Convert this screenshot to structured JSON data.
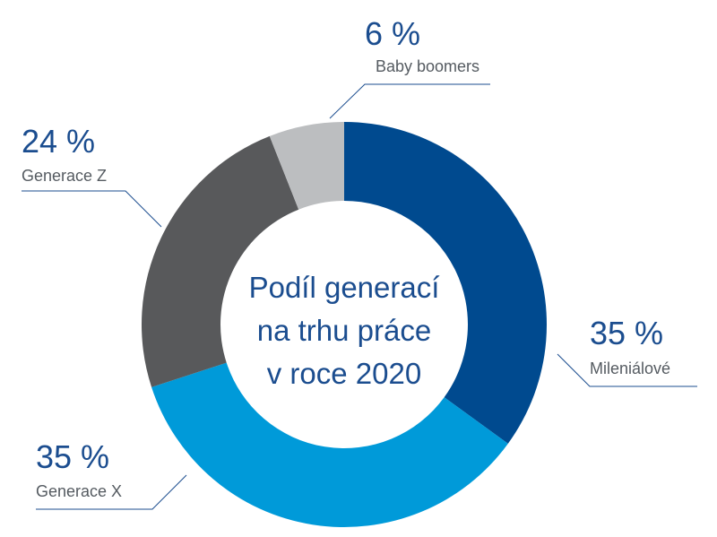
{
  "chart_data": {
    "type": "pie",
    "title_lines": [
      "Podíl generací",
      "na trhu práce",
      "v roce 2020"
    ],
    "slices": [
      {
        "name": "Mileniálové",
        "value": 35,
        "display": "35 %",
        "color": "#004a8f"
      },
      {
        "name": "Generace X",
        "value": 35,
        "display": "35 %",
        "color": "#009ad9"
      },
      {
        "name": "Generace Z",
        "value": 24,
        "display": "24 %",
        "color": "#58595b"
      },
      {
        "name": "Baby boomers",
        "value": 6,
        "display": "6 %",
        "color": "#bcbec0"
      }
    ]
  }
}
